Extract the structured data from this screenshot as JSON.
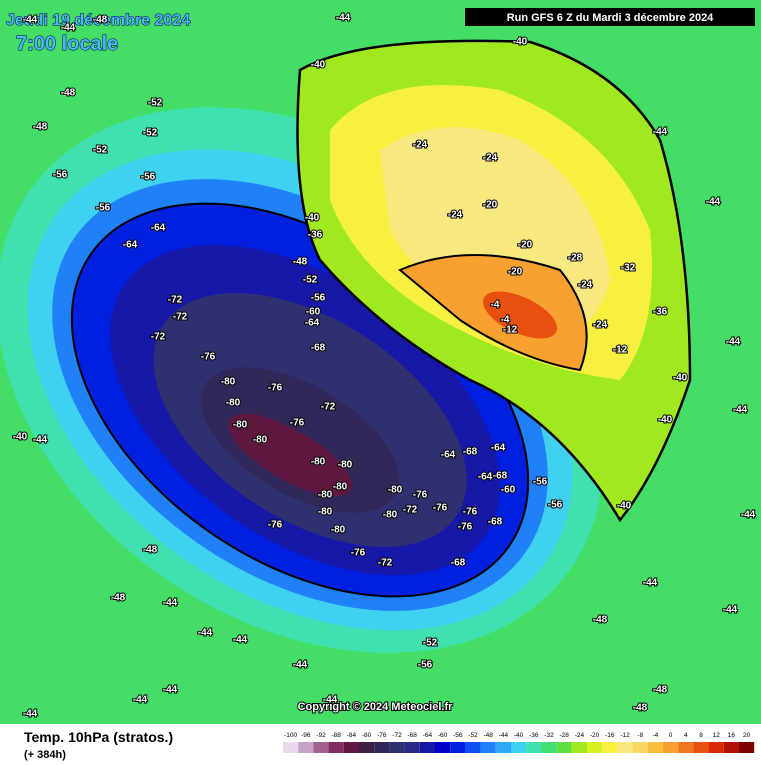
{
  "header": {
    "date": "Jeudi 19 décembre 2024",
    "time": "7:00 locale",
    "run": "Run GFS 6 Z du Mardi 3 décembre 2024"
  },
  "map_labels": [
    -44,
    -40,
    -40,
    -44,
    -44,
    -44,
    -44,
    -44,
    -44,
    -48,
    -48,
    -24,
    -24,
    -24,
    -20,
    -20,
    -20,
    -28,
    -24,
    -4,
    -4,
    -12,
    -24,
    -12,
    -32,
    -36,
    -40,
    -40,
    -40,
    -56,
    -56,
    -44,
    -44,
    -48,
    -48,
    -48,
    -52,
    -52,
    -52,
    -56,
    -56,
    -56,
    -64,
    -64,
    -40,
    -36,
    -48,
    -52,
    -56,
    -60,
    -64,
    -68,
    -72,
    -72,
    -72,
    -76,
    -80,
    -80,
    -76,
    -72,
    -76,
    -80,
    -80,
    -80,
    -80,
    -80,
    -80,
    -80,
    -80,
    -76,
    -76,
    -72,
    -80,
    -80,
    -76,
    -72,
    -76,
    -76,
    -76,
    -68,
    -68,
    -64,
    -68,
    -64,
    -68,
    -64,
    -60,
    -40,
    -44,
    -48,
    -48,
    -44,
    -44,
    -44,
    -44,
    -44,
    -44,
    -44,
    -44,
    -52,
    -56,
    -48,
    -44
  ],
  "footer": {
    "copyright": "Copyright © 2024 Meteociel.fr",
    "title": "Temp. 10hPa (stratos.)",
    "lead": "(+ 384h)"
  },
  "colorbar": {
    "ticks": [
      -100,
      -96,
      -92,
      -88,
      -84,
      -80,
      -76,
      -72,
      -68,
      -64,
      -60,
      -56,
      -52,
      -48,
      -44,
      -40,
      -36,
      -32,
      -28,
      -24,
      -20,
      -16,
      -12,
      -8,
      -4,
      0,
      4,
      8,
      12,
      16,
      20
    ],
    "colors": [
      "#e8d8e8",
      "#c8a0c8",
      "#a06090",
      "#803060",
      "#601840",
      "#402040",
      "#302858",
      "#303070",
      "#282888",
      "#1818a8",
      "#0000c8",
      "#0020e0",
      "#1050f0",
      "#2080f8",
      "#30a8f8",
      "#40d0f0",
      "#40e0b0",
      "#40e070",
      "#60e040",
      "#a0e820",
      "#d8f020",
      "#f8f040",
      "#f8e880",
      "#f8d860",
      "#f8c040",
      "#f8a030",
      "#f07820",
      "#e85010",
      "#d82808",
      "#b01008",
      "#800000"
    ]
  }
}
